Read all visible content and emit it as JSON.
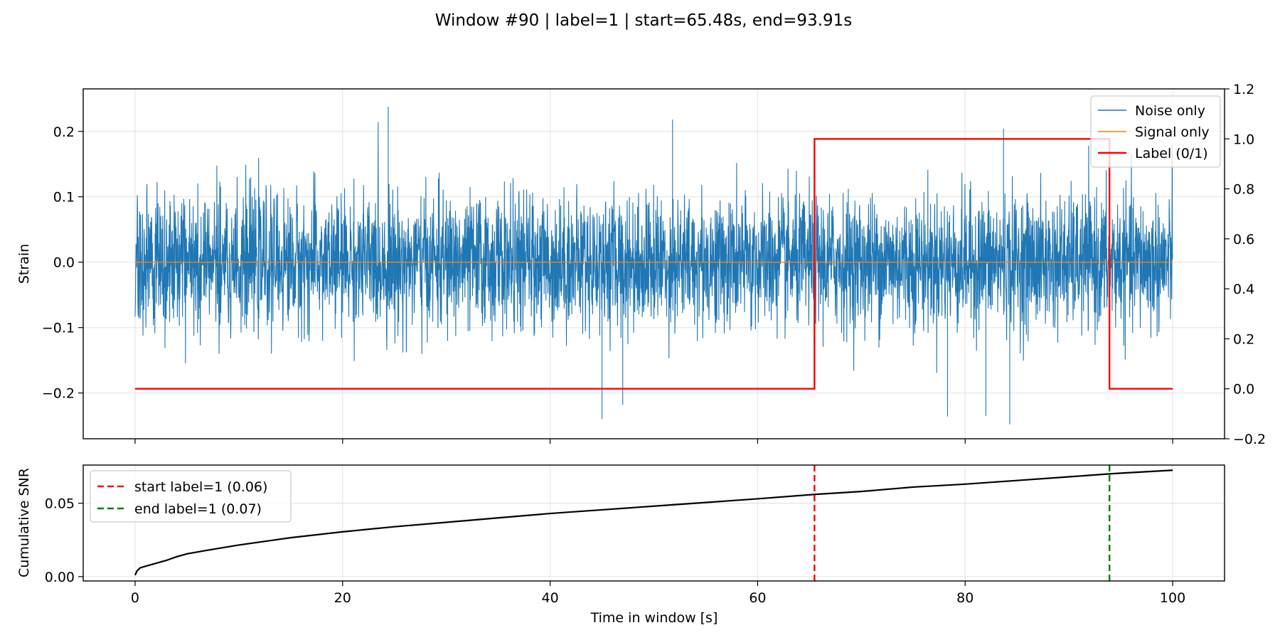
{
  "figure": {
    "title": "Window #90 | label=1 | start=65.48s, end=93.91s"
  },
  "chart_data": [
    {
      "type": "line",
      "xlabel": "",
      "ylabel": "Strain",
      "y2label": "",
      "xlim": [
        -5,
        105
      ],
      "ylim": [
        -0.27,
        0.265
      ],
      "y2lim": [
        -0.2,
        1.2
      ],
      "grid": true,
      "legend_position": "top-right",
      "xticks": [
        0,
        20,
        40,
        60,
        80,
        100
      ],
      "yticks": [
        -0.2,
        -0.1,
        0.0,
        0.1,
        0.2
      ],
      "ytick_labels": [
        "−0.2",
        "−0.1",
        "0.0",
        "0.1",
        "0.2"
      ],
      "y2ticks": [
        -0.2,
        0.0,
        0.2,
        0.4,
        0.6,
        0.8,
        1.0,
        1.2
      ],
      "y2tick_labels": [
        "−0.2",
        "0.0",
        "0.2",
        "0.4",
        "0.6",
        "0.8",
        "1.0",
        "1.2"
      ],
      "series": [
        {
          "name": "Noise only",
          "color": "#1f77b4",
          "kind": "noise",
          "x_range": [
            0,
            100
          ],
          "mean": 0.0,
          "typical_amplitude": 0.13,
          "peak_min": -0.25,
          "peak_max": 0.238,
          "notable_peaks": [
            {
              "x": 24.4,
              "y": 0.238
            },
            {
              "x": 51.8,
              "y": 0.218
            },
            {
              "x": 83.7,
              "y": 0.204
            },
            {
              "x": 45.0,
              "y": -0.24
            },
            {
              "x": 47.0,
              "y": -0.218
            },
            {
              "x": 78.3,
              "y": -0.236
            },
            {
              "x": 82.0,
              "y": -0.235
            },
            {
              "x": 84.3,
              "y": -0.248
            }
          ]
        },
        {
          "name": "Signal only",
          "color": "#ff7f0e",
          "x": [
            0,
            100
          ],
          "y": [
            0.0,
            0.0
          ]
        },
        {
          "name": "Label (0/1)",
          "color": "#ff0000",
          "axis": "right",
          "x": [
            0,
            65.48,
            65.48,
            93.91,
            93.91,
            100
          ],
          "y": [
            0,
            0,
            1,
            1,
            0,
            0
          ]
        }
      ]
    },
    {
      "type": "line",
      "xlabel": "Time in window [s]",
      "ylabel": "Cumulative SNR",
      "xlim": [
        -5,
        105
      ],
      "ylim": [
        -0.003,
        0.076
      ],
      "grid": true,
      "legend_position": "top-left",
      "xticks": [
        0,
        20,
        40,
        60,
        80,
        100
      ],
      "xtick_labels": [
        "0",
        "20",
        "40",
        "60",
        "80",
        "100"
      ],
      "yticks": [
        0.0,
        0.05
      ],
      "ytick_labels": [
        "0.00",
        "0.05"
      ],
      "series": [
        {
          "name": "",
          "color": "#000000",
          "x": [
            0,
            0.2,
            0.5,
            1,
            2,
            3,
            4,
            5,
            7,
            10,
            15,
            20,
            25,
            30,
            35,
            40,
            45,
            50,
            55,
            60,
            65.48,
            70,
            75,
            80,
            85,
            90,
            93.91,
            95,
            100
          ],
          "y": [
            0.001,
            0.004,
            0.006,
            0.007,
            0.009,
            0.011,
            0.0135,
            0.0155,
            0.018,
            0.0215,
            0.0265,
            0.0305,
            0.034,
            0.037,
            0.04,
            0.043,
            0.0455,
            0.048,
            0.0505,
            0.053,
            0.056,
            0.058,
            0.061,
            0.063,
            0.0655,
            0.068,
            0.07,
            0.0705,
            0.0725
          ]
        }
      ],
      "vlines": [
        {
          "name": "start label=1 (0.06)",
          "x": 65.48,
          "color": "#ff0000",
          "style": "dashed"
        },
        {
          "name": "end label=1 (0.07)",
          "x": 93.91,
          "color": "#008000",
          "style": "dashed"
        }
      ]
    }
  ]
}
